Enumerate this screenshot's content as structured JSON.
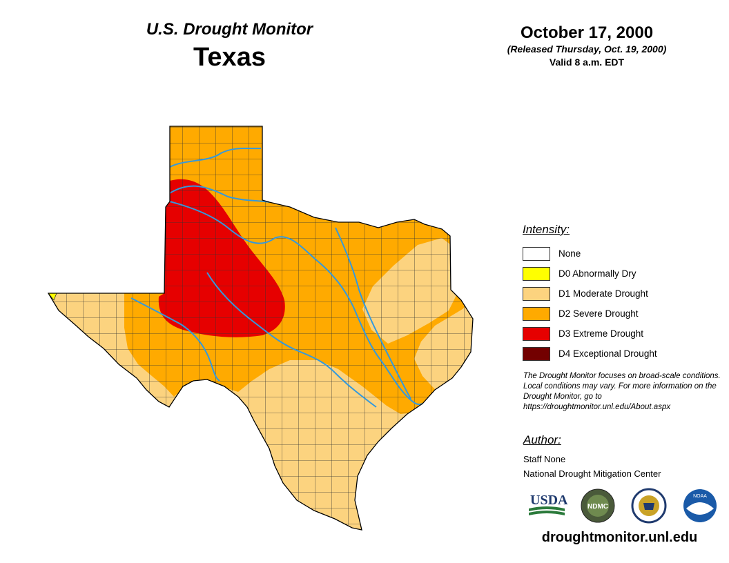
{
  "header": {
    "series": "U.S. Drought Monitor",
    "region": "Texas",
    "date": "October 17, 2000",
    "released": "(Released Thursday, Oct. 19, 2000)",
    "valid": "Valid 8 a.m. EDT"
  },
  "legend": {
    "title": "Intensity:",
    "items": [
      {
        "label": "None",
        "color": "#ffffff"
      },
      {
        "label": "D0 Abnormally Dry",
        "color": "#ffff00"
      },
      {
        "label": "D1 Moderate Drought",
        "color": "#fcd37f"
      },
      {
        "label": "D2 Severe Drought",
        "color": "#ffaa00"
      },
      {
        "label": "D3 Extreme Drought",
        "color": "#e60000"
      },
      {
        "label": "D4 Exceptional Drought",
        "color": "#730000"
      }
    ]
  },
  "note": "The Drought Monitor focuses on broad-scale conditions. Local conditions may vary. For more information on the Drought Monitor, go to https://droughtmonitor.unl.edu/About.aspx",
  "author": {
    "title": "Author:",
    "name": "Staff None",
    "organization": "National Drought Mitigation Center"
  },
  "logos": [
    {
      "name": "usda-logo",
      "text": "USDA"
    },
    {
      "name": "ndmc-logo",
      "text": "NDMC"
    },
    {
      "name": "commerce-seal"
    },
    {
      "name": "noaa-logo",
      "text": "NOAA"
    }
  ],
  "website": "droughtmonitor.unl.edu",
  "colors": {
    "river": "#3399dd",
    "county_lines": "#333333",
    "state_outline": "#000000"
  }
}
